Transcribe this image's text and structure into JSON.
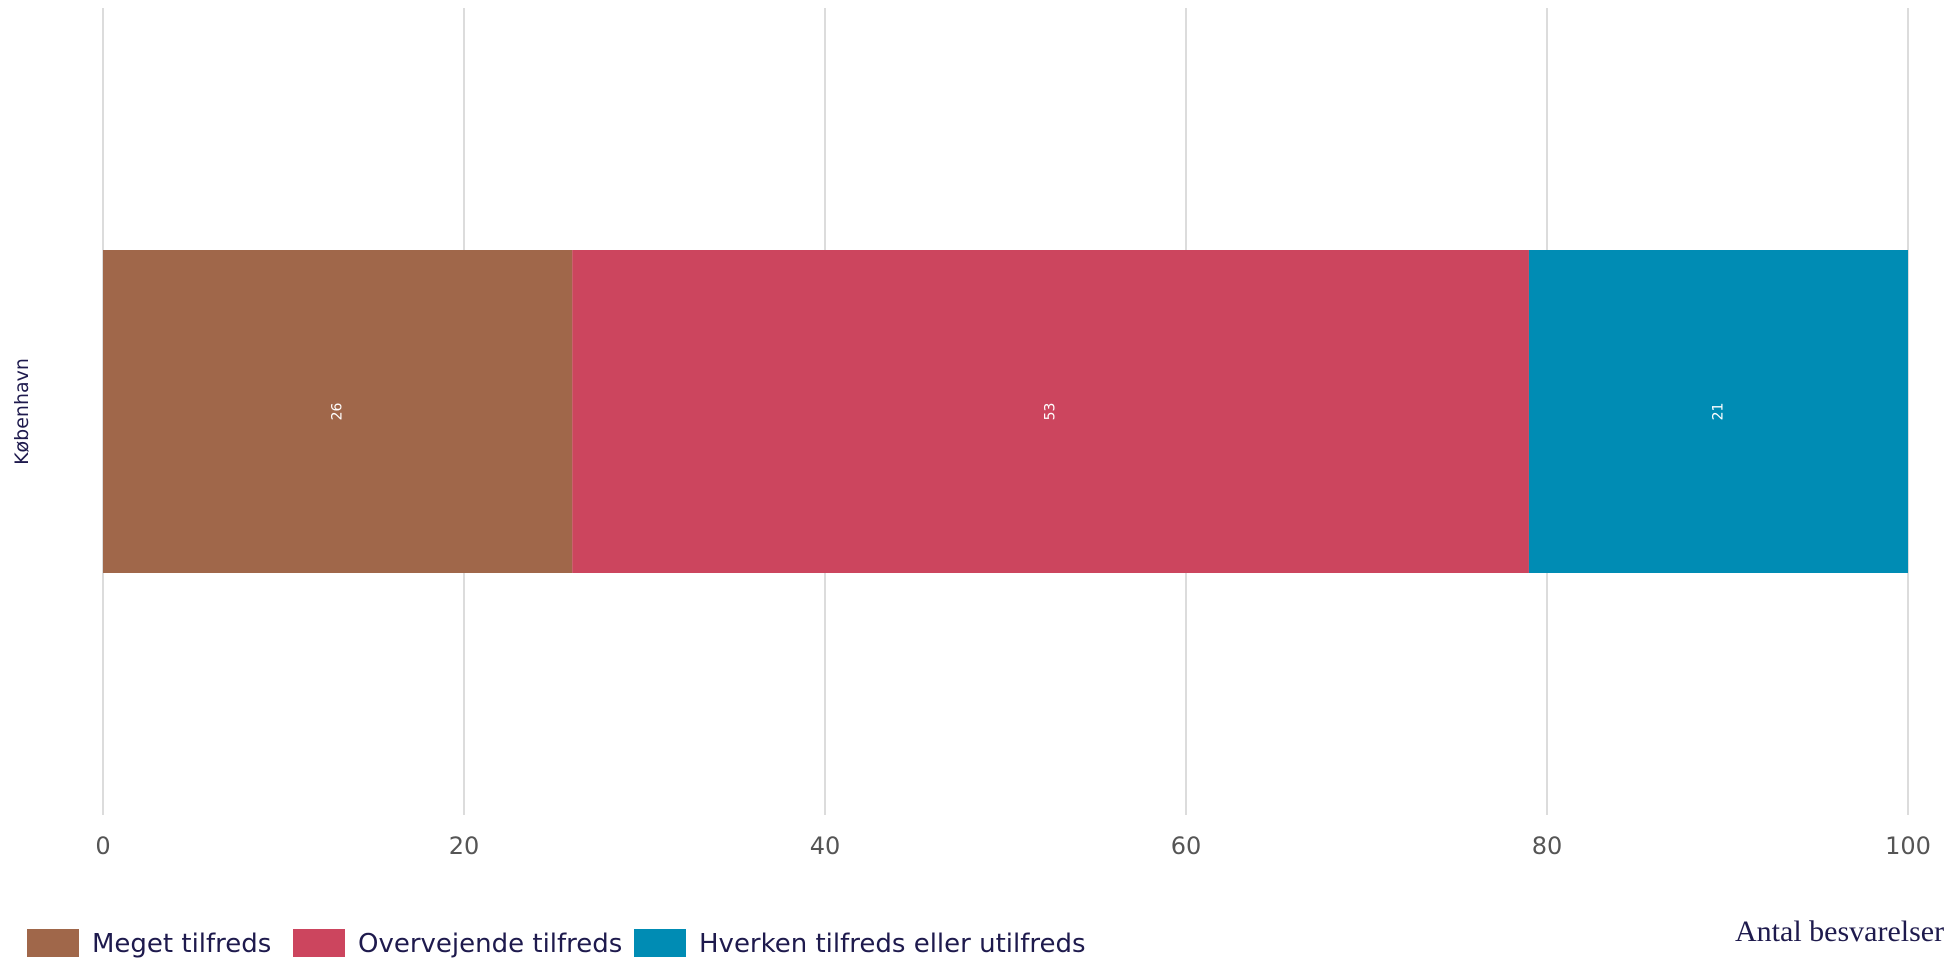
{
  "chart_data": {
    "type": "bar",
    "orientation": "horizontal",
    "stacked": true,
    "categories": [
      "København"
    ],
    "series": [
      {
        "name": "Meget tilfreds",
        "values": [
          26
        ],
        "color": "#a0674a"
      },
      {
        "name": "Overvejende tilfreds",
        "values": [
          53
        ],
        "color": "#cc455e"
      },
      {
        "name": "Hverken tilfreds eller utilfreds",
        "values": [
          21
        ],
        "color": "#008cb4"
      }
    ],
    "x_ticks": [
      0,
      20,
      40,
      60,
      80,
      100
    ],
    "xlim": [
      0,
      100
    ],
    "xlabel": "Antal besvarelser",
    "ylabel": "",
    "title": "",
    "grid": "vertical",
    "legend": "bottom-left",
    "data_labels": true
  }
}
